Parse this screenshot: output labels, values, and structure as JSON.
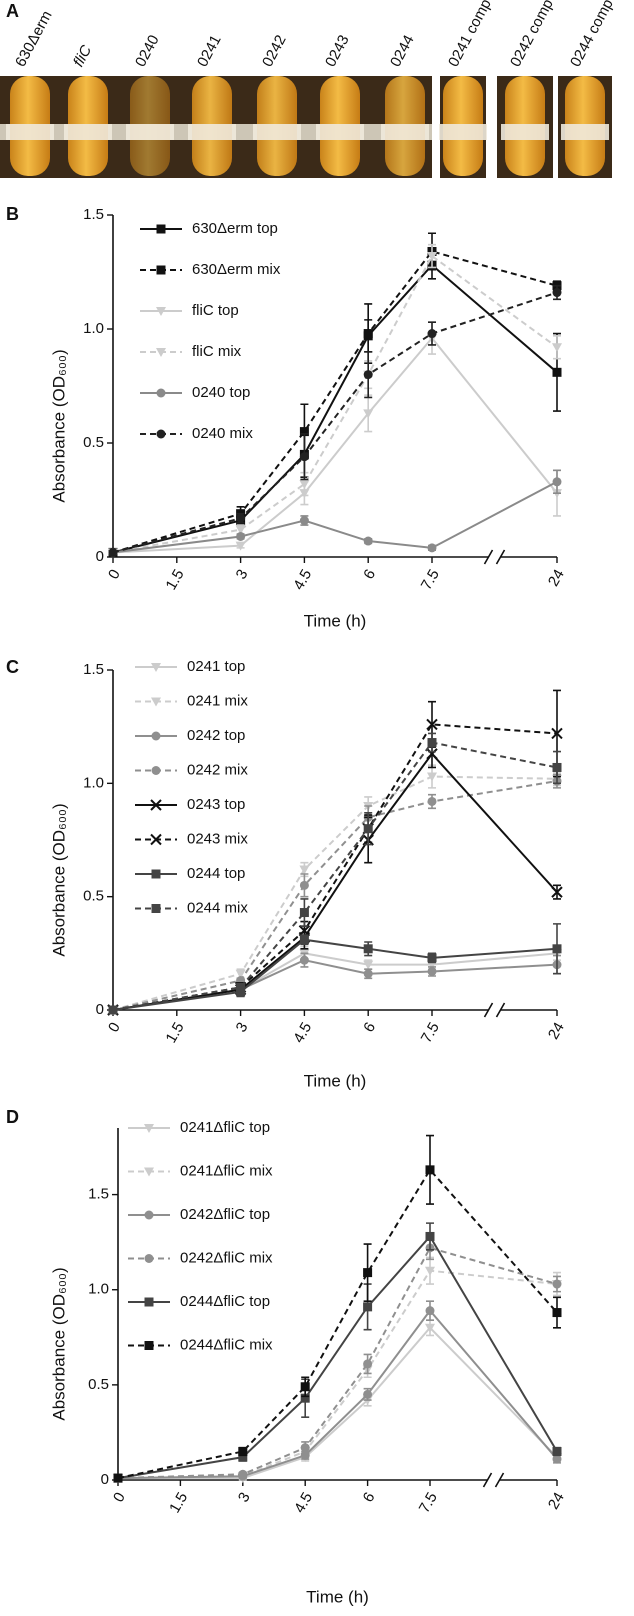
{
  "photo": {
    "panel": "A",
    "labels": [
      "630Δerm",
      "fliC",
      "0240",
      "0241",
      "0242",
      "0243",
      "0244",
      "0241 comp",
      "0242 comp",
      "0244 comp"
    ]
  },
  "chart_data": [
    {
      "type": "line",
      "panel": "B",
      "xlabel": "Time (h)",
      "ylabel": "Absorbance (OD₆₀₀)",
      "x": [
        0,
        3,
        4.5,
        6,
        7.5,
        24
      ],
      "xlim": [
        0,
        24
      ],
      "xticks": [
        0,
        1.5,
        3,
        4.5,
        6,
        7.5,
        24
      ],
      "x_axis_break": true,
      "ylim": [
        0,
        1.5
      ],
      "yticks": [
        0,
        0.5,
        {
          "value": 1,
          "label": "1.0"
        },
        1.5
      ],
      "series": [
        {
          "name": "630Δerm top",
          "color": "#111111",
          "marker": "square",
          "linestyle": "solid",
          "values": [
            0.02,
            0.16,
            0.45,
            0.97,
            1.28,
            0.81
          ],
          "errors": [
            0,
            0.02,
            0.1,
            0.07,
            0.06,
            0.17
          ]
        },
        {
          "name": "630Δerm mix",
          "color": "#111111",
          "marker": "square",
          "linestyle": "dashed",
          "values": [
            0.02,
            0.19,
            0.55,
            0.98,
            1.34,
            1.19
          ],
          "errors": [
            0,
            0.03,
            0.12,
            0.13,
            0.08,
            0.02
          ]
        },
        {
          "name": "fliC top",
          "color": "#cccccc",
          "marker": "triangle",
          "linestyle": "solid",
          "values": [
            0.02,
            0.05,
            0.28,
            0.63,
            0.96,
            0.28
          ],
          "errors": [
            0,
            0.01,
            0.05,
            0.08,
            0.07,
            0.1
          ]
        },
        {
          "name": "fliC mix",
          "color": "#cccccc",
          "marker": "triangle",
          "linestyle": "dashed",
          "values": [
            0.02,
            0.12,
            0.32,
            0.8,
            1.32,
            0.92
          ],
          "errors": [
            0,
            0.02,
            0.05,
            0.06,
            0.05,
            0.05
          ]
        },
        {
          "name": "0240 top",
          "color": "#8a8a8a",
          "marker": "circle",
          "linestyle": "solid",
          "values": [
            0.02,
            0.09,
            0.16,
            0.07,
            0.04,
            0.33
          ],
          "errors": [
            0,
            0.01,
            0.02,
            0.01,
            0.01,
            0.05
          ]
        },
        {
          "name": "0240 mix",
          "color": "#222222",
          "marker": "circle",
          "linestyle": "dashed",
          "values": [
            0.02,
            0.17,
            0.44,
            0.8,
            0.98,
            1.16
          ],
          "errors": [
            0,
            0.02,
            0.1,
            0.1,
            0.05,
            0.03
          ]
        }
      ]
    },
    {
      "type": "line",
      "panel": "C",
      "xlabel": "Time (h)",
      "ylabel": "Absorbance (OD₆₀₀)",
      "x": [
        0,
        3,
        4.5,
        6,
        7.5,
        24
      ],
      "xlim": [
        0,
        24
      ],
      "xticks": [
        0,
        1.5,
        3,
        4.5,
        6,
        7.5,
        24
      ],
      "x_axis_break": true,
      "ylim": [
        0,
        1.5
      ],
      "yticks": [
        0,
        0.5,
        {
          "value": 1,
          "label": "1.0"
        },
        1.5
      ],
      "series": [
        {
          "name": "0241 top",
          "color": "#cccccc",
          "marker": "triangle",
          "linestyle": "solid",
          "values": [
            0,
            0.09,
            0.25,
            0.2,
            0.2,
            0.25
          ],
          "errors": [
            0,
            0.01,
            0.03,
            0.02,
            0.02,
            0.03
          ]
        },
        {
          "name": "0241 mix",
          "color": "#cccccc",
          "marker": "triangle",
          "linestyle": "dashed",
          "values": [
            0,
            0.16,
            0.62,
            0.9,
            1.03,
            1.02
          ],
          "errors": [
            0,
            0.02,
            0.03,
            0.04,
            0.05,
            0.03
          ]
        },
        {
          "name": "0242 top",
          "color": "#8f8f8f",
          "marker": "circle",
          "linestyle": "solid",
          "values": [
            0,
            0.09,
            0.22,
            0.16,
            0.17,
            0.2
          ],
          "errors": [
            0,
            0.01,
            0.03,
            0.02,
            0.02,
            0.04
          ]
        },
        {
          "name": "0242 mix",
          "color": "#8f8f8f",
          "marker": "circle",
          "linestyle": "dashed",
          "values": [
            0,
            0.13,
            0.55,
            0.85,
            0.92,
            1.01
          ],
          "errors": [
            0,
            0.01,
            0.05,
            0.05,
            0.03,
            0.03
          ]
        },
        {
          "name": "0243 top",
          "color": "#111111",
          "marker": "x",
          "linestyle": "solid",
          "values": [
            0,
            0.09,
            0.32,
            0.75,
            1.13,
            0.52
          ],
          "errors": [
            0,
            0.01,
            0.05,
            0.1,
            0.06,
            0.03
          ]
        },
        {
          "name": "0243 mix",
          "color": "#111111",
          "marker": "x",
          "linestyle": "dashed",
          "values": [
            0,
            0.1,
            0.35,
            0.8,
            1.26,
            1.22
          ],
          "errors": [
            0,
            0.02,
            0.04,
            0.06,
            0.1,
            0.19
          ]
        },
        {
          "name": "0244 top",
          "color": "#444444",
          "marker": "square",
          "linestyle": "solid",
          "values": [
            0,
            0.08,
            0.31,
            0.27,
            0.23,
            0.27
          ],
          "errors": [
            0,
            0.02,
            0.02,
            0.03,
            0.02,
            0.11
          ]
        },
        {
          "name": "0244 mix",
          "color": "#444444",
          "marker": "square",
          "linestyle": "dashed",
          "values": [
            0,
            0.1,
            0.43,
            0.8,
            1.18,
            1.07
          ],
          "errors": [
            0,
            0.01,
            0.06,
            0.07,
            0.04,
            0.07
          ]
        }
      ]
    },
    {
      "type": "line",
      "panel": "D",
      "xlabel": "Time (h)",
      "ylabel": "Absorbance (OD₆₀₀)",
      "x": [
        0,
        3,
        4.5,
        6,
        7.5,
        24
      ],
      "xlim": [
        0,
        24
      ],
      "xticks": [
        0,
        1.5,
        3,
        4.5,
        6,
        7.5,
        24
      ],
      "x_axis_break": true,
      "ylim": [
        0,
        1.85
      ],
      "yticks": [
        0,
        0.5,
        {
          "value": 1,
          "label": "1.0"
        },
        1.5
      ],
      "series": [
        {
          "name": "0241ΔfliC top",
          "color": "#cccccc",
          "marker": "triangle",
          "linestyle": "solid",
          "values": [
            0.01,
            0.01,
            0.12,
            0.42,
            0.8,
            0.12
          ],
          "errors": [
            0,
            0.01,
            0.02,
            0.03,
            0.04,
            0.02
          ]
        },
        {
          "name": "0241ΔfliC mix",
          "color": "#cccccc",
          "marker": "triangle",
          "linestyle": "dashed",
          "values": [
            0.01,
            0.02,
            0.15,
            0.58,
            1.1,
            1.03
          ],
          "errors": [
            0,
            0.01,
            0.03,
            0.04,
            0.07,
            0.06
          ]
        },
        {
          "name": "0242ΔfliC top",
          "color": "#8f8f8f",
          "marker": "circle",
          "linestyle": "solid",
          "values": [
            0.01,
            0.02,
            0.13,
            0.45,
            0.89,
            0.11
          ],
          "errors": [
            0,
            0.01,
            0.02,
            0.03,
            0.05,
            0.02
          ]
        },
        {
          "name": "0242ΔfliC mix",
          "color": "#8f8f8f",
          "marker": "circle",
          "linestyle": "dashed",
          "values": [
            0.01,
            0.03,
            0.17,
            0.61,
            1.22,
            1.03
          ],
          "errors": [
            0,
            0.01,
            0.03,
            0.05,
            0.06,
            0.04
          ]
        },
        {
          "name": "0244ΔfliC top",
          "color": "#444444",
          "marker": "square",
          "linestyle": "solid",
          "values": [
            0.01,
            0.12,
            0.43,
            0.91,
            1.28,
            0.15
          ],
          "errors": [
            0,
            0.02,
            0.1,
            0.12,
            0.07,
            0.02
          ]
        },
        {
          "name": "0244ΔfliC mix",
          "color": "#111111",
          "marker": "square",
          "linestyle": "dashed",
          "values": [
            0.01,
            0.15,
            0.49,
            1.09,
            1.63,
            0.88
          ],
          "errors": [
            0,
            0.02,
            0.05,
            0.15,
            0.18,
            0.08
          ]
        }
      ]
    }
  ]
}
